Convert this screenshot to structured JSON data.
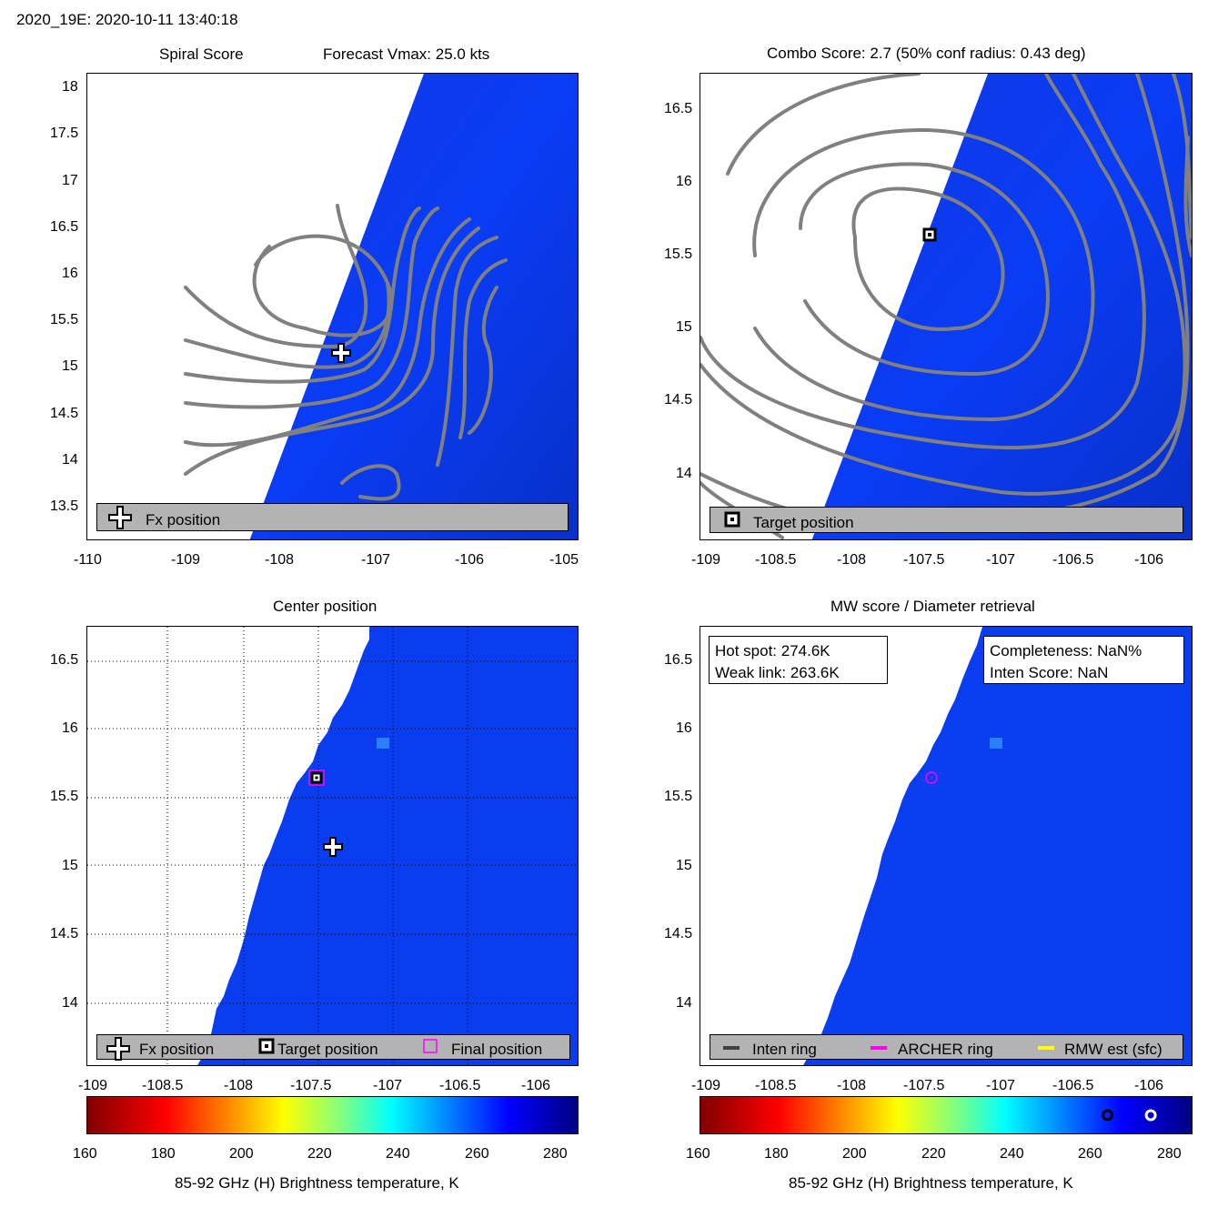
{
  "header": {
    "storm_id_time": "2020_19E: 2020-10-11 13:40:18"
  },
  "panels": {
    "spiral": {
      "title_left": "Spiral Score",
      "title_right": "Forecast Vmax: 25.0 kts",
      "xticks": [
        "-110",
        "-109",
        "-108",
        "-107",
        "-106",
        "-105"
      ],
      "yticks": [
        "18",
        "17.5",
        "17",
        "16.5",
        "16",
        "15.5",
        "15",
        "14.5",
        "14",
        "13.5"
      ],
      "legend": {
        "fx": "Fx position"
      }
    },
    "combo": {
      "title": "Combo Score: 2.7  (50% conf radius: 0.43 deg)",
      "xticks": [
        "-109",
        "-108.5",
        "-108",
        "-107.5",
        "-107",
        "-106.5",
        "-106"
      ],
      "yticks": [
        "16.5",
        "16",
        "15.5",
        "15",
        "14.5",
        "14"
      ],
      "legend": {
        "target": "Target position"
      }
    },
    "center": {
      "title": "Center position",
      "xticks": [
        "-109",
        "-108.5",
        "-108",
        "-107.5",
        "-107",
        "-106.5",
        "-106"
      ],
      "yticks": [
        "16.5",
        "16",
        "15.5",
        "15",
        "14.5",
        "14"
      ],
      "legend": {
        "fx": "Fx position",
        "target": "Target position",
        "final": "Final position"
      }
    },
    "mw": {
      "title": "MW score / Diameter retrieval",
      "xticks": [
        "-109",
        "-108.5",
        "-108",
        "-107.5",
        "-107",
        "-106.5",
        "-106"
      ],
      "yticks": [
        "16.5",
        "16",
        "15.5",
        "15",
        "14.5",
        "14"
      ],
      "hot_spot": "Hot spot: 274.6K",
      "weak_link": "Weak link: 263.6K",
      "completeness": "Completeness: NaN%",
      "inten_score": "Inten Score: NaN",
      "legend": {
        "inten": "Inten ring",
        "archer": "ARCHER ring",
        "rmw": "RMW est (sfc)"
      }
    }
  },
  "colorbar": {
    "ticks": [
      "160",
      "180",
      "200",
      "220",
      "240",
      "260",
      "280"
    ],
    "label": "85-92 GHz (H) Brightness temperature, K"
  },
  "colors": {
    "field_blue": "#0a3cf0",
    "contour": "#808080",
    "legend_bg": "#b3b3b3",
    "archer": "#ff00ff",
    "rmw": "#ffff00",
    "inten": "#404040"
  },
  "chart_data": [
    {
      "type": "heatmap",
      "title": "Spiral Score",
      "xlim": [
        -110.1,
        -105.1
      ],
      "ylim": [
        13.1,
        18.1
      ],
      "fx_position": [
        -107.35,
        15.13
      ]
    },
    {
      "type": "heatmap",
      "title": "Combo Score: 2.7  (50% conf radius: 0.43 deg)",
      "xlim": [
        -109.05,
        -105.75
      ],
      "ylim": [
        13.55,
        16.75
      ],
      "target_position": [
        -107.5,
        15.63
      ]
    },
    {
      "type": "heatmap",
      "title": "Center position",
      "xlim": [
        -109.05,
        -105.75
      ],
      "ylim": [
        13.55,
        16.75
      ],
      "fx_position": [
        -107.4,
        15.13
      ],
      "target_position": [
        -107.5,
        15.63
      ],
      "final_position": [
        -107.5,
        15.63
      ]
    },
    {
      "type": "heatmap",
      "title": "MW score / Diameter retrieval",
      "xlim": [
        -109.05,
        -105.75
      ],
      "ylim": [
        13.55,
        16.75
      ],
      "archer_center": [
        -107.5,
        15.63
      ],
      "colorbar_markers": {
        "weak_link_K": 263.6,
        "hot_spot_K": 274.6
      }
    }
  ]
}
